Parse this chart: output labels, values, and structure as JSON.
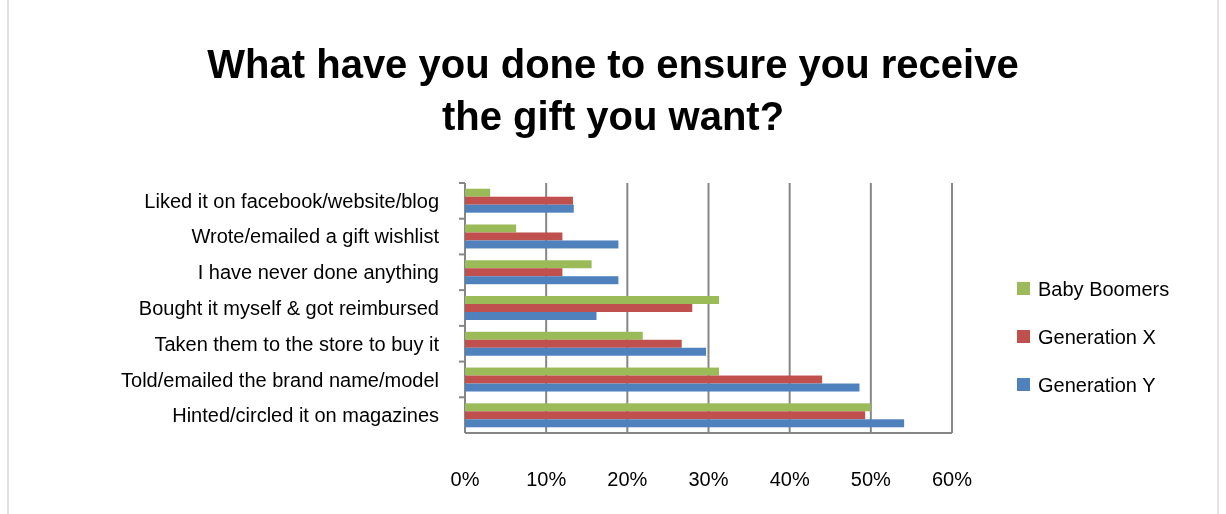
{
  "chart_data": {
    "type": "bar",
    "orientation": "horizontal",
    "title": "What have you done to ensure you receive the gift you want?",
    "categories": [
      "Liked it on facebook/website/blog",
      "Wrote/emailed a gift wishlist",
      "I have never done anything",
      "Bought it myself & got reimbursed",
      "Taken them to the store to buy it",
      "Told/emailed the brand name/model",
      "Hinted/circled it on magazines"
    ],
    "series": [
      {
        "name": "Baby Boomers",
        "color": "#9bbb59",
        "values": [
          3.1,
          6.3,
          15.6,
          31.3,
          21.9,
          31.3,
          50.0
        ]
      },
      {
        "name": "Generation X",
        "color": "#c0504d",
        "values": [
          13.3,
          12.0,
          12.0,
          28.0,
          26.7,
          44.0,
          49.3
        ]
      },
      {
        "name": "Generation Y",
        "color": "#4f81bd",
        "values": [
          13.4,
          18.9,
          18.9,
          16.2,
          29.7,
          48.6,
          54.1
        ]
      }
    ],
    "xlim": [
      0,
      60
    ],
    "xticks": [
      {
        "value": 0,
        "label": "0%"
      },
      {
        "value": 10,
        "label": "10%"
      },
      {
        "value": 20,
        "label": "20%"
      },
      {
        "value": 30,
        "label": "30%"
      },
      {
        "value": 40,
        "label": "40%"
      },
      {
        "value": 50,
        "label": "50%"
      },
      {
        "value": 60,
        "label": "60%"
      }
    ],
    "grid": "x",
    "legend": "right"
  }
}
